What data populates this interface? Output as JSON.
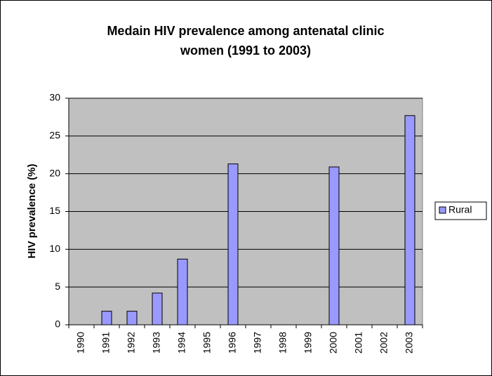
{
  "chart_data": {
    "type": "bar",
    "title": [
      "Medain HIV prevalence among antenatal clinic",
      "women (1991 to 2003)"
    ],
    "y_label": "HIV prevalence (%)",
    "categories": [
      "1990",
      "1991",
      "1992",
      "1993",
      "1994",
      "1995",
      "1996",
      "1997",
      "1998",
      "1999",
      "2000",
      "2001",
      "2002",
      "2003"
    ],
    "series": [
      {
        "name": "Rural",
        "color": "#9999ff",
        "values": [
          null,
          1.8,
          1.8,
          4.2,
          8.7,
          null,
          21.3,
          null,
          null,
          null,
          20.9,
          null,
          null,
          27.7
        ]
      }
    ],
    "ylim": [
      0,
      30
    ],
    "yticks": [
      0,
      5,
      10,
      15,
      20,
      25,
      30
    ],
    "grid": true,
    "legend": "right",
    "plot_background": "#c0c0c0"
  }
}
